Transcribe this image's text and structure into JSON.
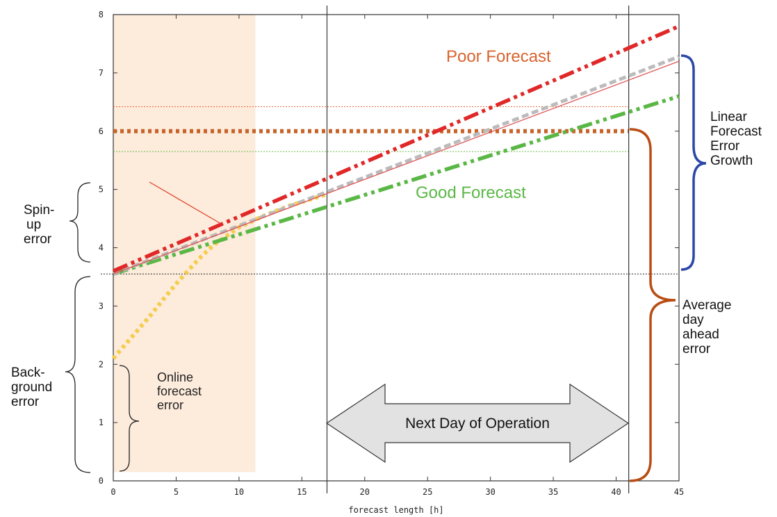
{
  "chart_data": {
    "type": "line",
    "title": "",
    "xlabel": "forecast length [h]",
    "ylabel": "",
    "xlim": [
      0,
      45
    ],
    "ylim": [
      0,
      8
    ],
    "x_ticks": [
      "0",
      "5",
      "10",
      "15",
      "20",
      "25",
      "30",
      "35",
      "40",
      "45"
    ],
    "y_ticks": [
      "0",
      "1",
      "2",
      "3",
      "4",
      "5",
      "6",
      "7",
      "8"
    ],
    "grid": false,
    "series": [
      {
        "name": "Poor Forecast",
        "color": "#e02828",
        "style": "dash-dot-dot",
        "x": [
          0,
          45
        ],
        "y": [
          3.6,
          7.8
        ]
      },
      {
        "name": "",
        "color": "#e05555",
        "style": "solid-thin",
        "x": [
          0,
          45
        ],
        "y": [
          3.55,
          7.2
        ]
      },
      {
        "name": "",
        "color": "#bbbbbb",
        "style": "dashed",
        "x": [
          0,
          45
        ],
        "y": [
          3.55,
          7.28
        ]
      },
      {
        "name": "Good Forecast",
        "color": "#5ab746",
        "style": "dash-dot-dot",
        "x": [
          0,
          45
        ],
        "y": [
          3.55,
          6.6
        ]
      },
      {
        "name": "",
        "color": "#f5cd4d",
        "style": "dotted-thick",
        "x": [
          0,
          1,
          2,
          3,
          4,
          5,
          6,
          7,
          8,
          9,
          10,
          12,
          14,
          16,
          17
        ],
        "y": [
          2.1,
          2.35,
          2.6,
          2.85,
          3.12,
          3.38,
          3.62,
          3.85,
          4.05,
          4.2,
          4.35,
          4.55,
          4.72,
          4.85,
          4.92
        ]
      }
    ],
    "hlines": [
      {
        "y": 6.0,
        "x": [
          0,
          41
        ],
        "color": "#c8642a",
        "style": "dotted-thick"
      },
      {
        "y": 6.42,
        "x": [
          0,
          41
        ],
        "color": "#e06a3a",
        "style": "dotted-thin"
      },
      {
        "y": 5.65,
        "x": [
          0,
          41
        ],
        "color": "#6abf4a",
        "style": "dotted-thin"
      },
      {
        "y": 3.55,
        "x": [
          -1,
          45
        ],
        "color": "#222222",
        "style": "dotted-thin"
      }
    ],
    "vlines": [
      17,
      41
    ],
    "shaded_region": {
      "x": [
        0,
        11.3
      ],
      "color": "#fdebdc"
    },
    "annotations": {
      "spinup": "Spin-\nup\nerror",
      "background": "Back-\nground\nerror",
      "online": "Online\nforecast\nerror",
      "linear": "Linear\nForecast\nError\nGrowth",
      "average": "Average\nday\nahead\nerror",
      "next_day": "Next Day of Operation"
    },
    "colors": {
      "poor": "#d9632f",
      "good": "#5ab746",
      "blue_brace": "#2b47a8",
      "brown_brace": "#b84d14"
    }
  }
}
